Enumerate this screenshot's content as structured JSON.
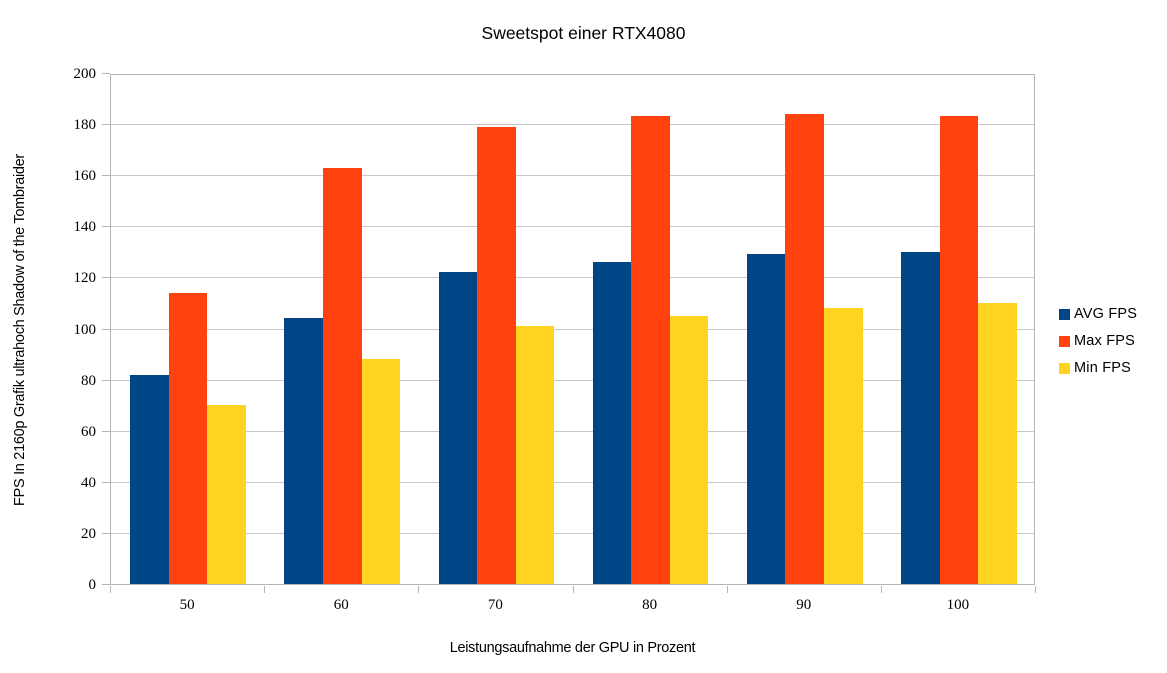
{
  "chart_data": {
    "type": "bar",
    "title": "Sweetspot einer RTX4080",
    "xlabel": "Leistungsaufnahme der GPU in Prozent",
    "ylabel": "FPS In 2160p Grafik ultrahoch Shadow of the Tombraider",
    "categories": [
      "50",
      "60",
      "70",
      "80",
      "90",
      "100"
    ],
    "series": [
      {
        "name": "AVG FPS",
        "color": "#004586",
        "values": [
          82,
          104,
          122,
          126,
          129,
          130
        ]
      },
      {
        "name": "Max FPS",
        "color": "#FF420E",
        "values": [
          114,
          163,
          179,
          183,
          184,
          183
        ]
      },
      {
        "name": "Min FPS",
        "color": "#FFD320",
        "values": [
          70,
          88,
          101,
          105,
          108,
          110
        ]
      }
    ],
    "ylim": [
      0,
      200
    ],
    "ytick_step": 20,
    "grid": true,
    "legend_position": "right",
    "colors": {
      "gridline": "#c8c8c8",
      "axis": "#b5b5b5",
      "text": "#000000",
      "background": "#ffffff"
    }
  }
}
